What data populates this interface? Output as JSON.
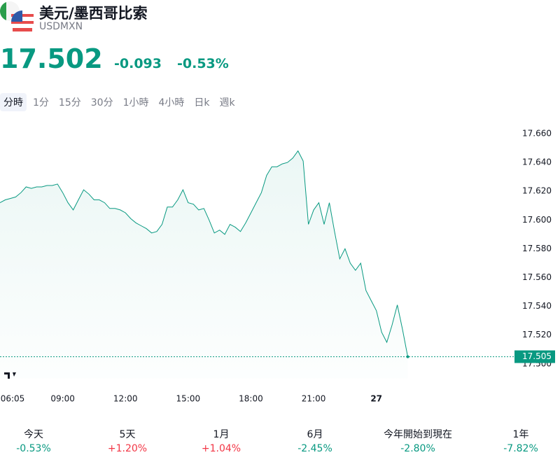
{
  "header": {
    "title": "美元/墨西哥比索",
    "symbol": "USDMXN",
    "price": "17.502",
    "change": "-0.093",
    "change_percent": "-0.53%"
  },
  "tabs": [
    "分時",
    "1分",
    "15分",
    "30分",
    "1小時",
    "4小時",
    "日k",
    "週k"
  ],
  "chart_data": {
    "type": "line",
    "color": "#089981",
    "grid": false,
    "categories": [
      "06:05",
      null,
      null,
      null,
      null,
      null,
      null,
      null,
      null,
      null,
      null,
      null,
      "09:00",
      null,
      null,
      null,
      null,
      null,
      null,
      null,
      null,
      null,
      null,
      null,
      "12:00",
      null,
      null,
      null,
      null,
      null,
      null,
      null,
      null,
      null,
      null,
      null,
      "15:00",
      null,
      null,
      null,
      null,
      null,
      null,
      null,
      null,
      null,
      null,
      null,
      "18:00",
      null,
      null,
      null,
      null,
      null,
      null,
      null,
      null,
      null,
      null,
      null,
      "21:00",
      null,
      null,
      null,
      null,
      null,
      null,
      null,
      null,
      null,
      null,
      null,
      "27",
      null,
      null,
      null,
      null,
      null,
      null
    ],
    "values": [
      17.612,
      17.614,
      17.615,
      17.616,
      17.619,
      17.623,
      17.622,
      17.623,
      17.623,
      17.624,
      17.624,
      17.625,
      17.619,
      17.612,
      17.607,
      17.614,
      17.621,
      17.618,
      17.614,
      17.614,
      17.612,
      17.608,
      17.608,
      17.607,
      17.605,
      17.601,
      17.598,
      17.596,
      17.594,
      17.591,
      17.592,
      17.597,
      17.609,
      17.609,
      17.614,
      17.621,
      17.612,
      17.611,
      17.607,
      17.608,
      17.6,
      17.591,
      17.593,
      17.59,
      17.597,
      17.595,
      17.592,
      17.598,
      17.605,
      17.612,
      17.619,
      17.631,
      17.637,
      17.637,
      17.639,
      17.64,
      17.643,
      17.648,
      17.641,
      17.597,
      17.607,
      17.612,
      17.597,
      17.612,
      17.592,
      17.573,
      17.58,
      17.57,
      17.565,
      17.57,
      17.551,
      17.544,
      17.537,
      17.522,
      17.515,
      17.527,
      17.541,
      17.524,
      17.505
    ],
    "ylim": [
      17.49,
      17.67
    ],
    "yticks": [
      {
        "value": 17.5,
        "label": "17.500"
      },
      {
        "value": 17.52,
        "label": "17.520"
      },
      {
        "value": 17.54,
        "label": "17.540"
      },
      {
        "value": 17.56,
        "label": "17.560"
      },
      {
        "value": 17.58,
        "label": "17.580"
      },
      {
        "value": 17.6,
        "label": "17.600"
      },
      {
        "value": 17.62,
        "label": "17.620"
      },
      {
        "value": 17.64,
        "label": "17.640"
      },
      {
        "value": 17.66,
        "label": "17.660"
      }
    ]
  },
  "performance": [
    {
      "label": "今天",
      "value": "-0.53%"
    },
    {
      "label": "5天",
      "value": "+1.20%"
    },
    {
      "label": "1月",
      "value": "+1.04%"
    },
    {
      "label": "6月",
      "value": "-2.45%"
    },
    {
      "label": "今年開始到現在",
      "value": "-2.80%"
    },
    {
      "label": "1年",
      "value": "-7.82%"
    }
  ]
}
